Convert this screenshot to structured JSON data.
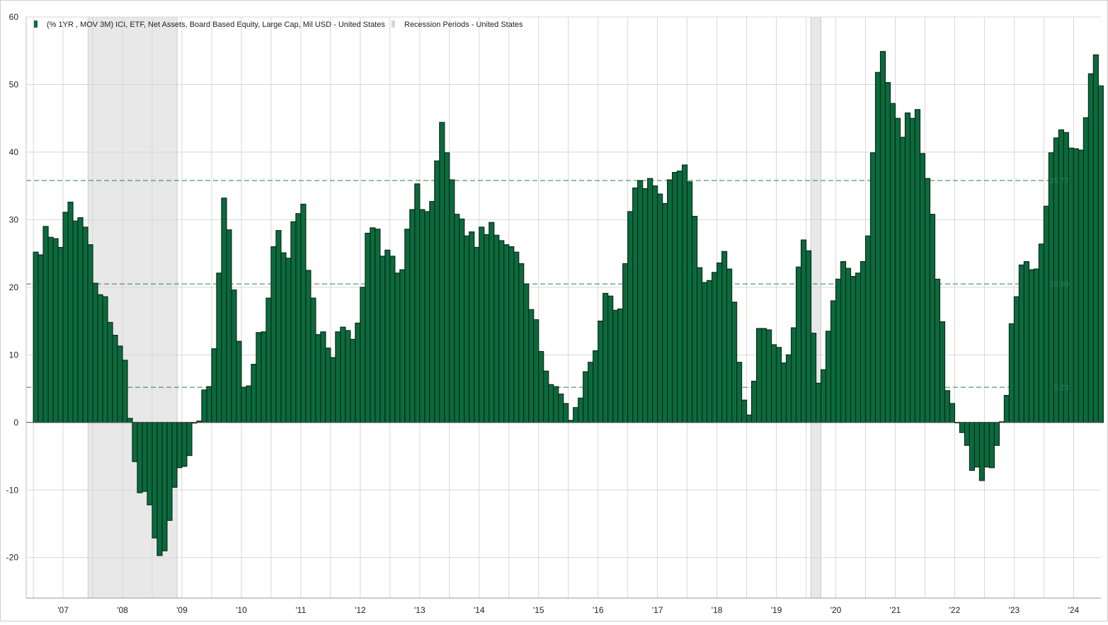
{
  "chart_data": {
    "type": "bar",
    "title": "",
    "xlabel": "",
    "ylabel": "",
    "ylim": [
      -26,
      60
    ],
    "grid": true,
    "legend_placement": "top-left",
    "colors": {
      "bar": "#0a6b3d",
      "bar_edge": "#0d2a1a",
      "recession": "#e8e8e8",
      "grid": "#d7d7d7",
      "band": "#2e7d52"
    },
    "y_ticks": [
      "60",
      "50",
      "40",
      "30",
      "20",
      "10",
      "0",
      "-10",
      "-20"
    ],
    "y_tick_values": [
      60,
      50,
      40,
      30,
      20,
      10,
      0,
      -10,
      -20
    ],
    "x_tick_labels": [
      "'07",
      "'08",
      "'09",
      "'10",
      "'11",
      "'12",
      "'13",
      "'14",
      "'15",
      "'16",
      "'17",
      "'18",
      "'19",
      "'20",
      "'21",
      "'22",
      "'23",
      "'24"
    ],
    "x_tick_years": [
      2007,
      2008,
      2009,
      2010,
      2011,
      2012,
      2013,
      2014,
      2015,
      2016,
      2017,
      2018,
      2019,
      2020,
      2021,
      2022,
      2023,
      2024
    ],
    "x_start_year": 2006.88,
    "x_end_year": 2024.96,
    "legend": [
      {
        "label": "(% 1YR , MOV 3M) ICI, ETF, Net Assets, Board Based Equity, Large Cap, Mil USD - United States",
        "kind": "series"
      },
      {
        "label": "Recession Periods - United States",
        "kind": "recession"
      }
    ],
    "recessions": [
      {
        "start": 2007.92,
        "end": 2009.42
      },
      {
        "start": 2020.08,
        "end": 2020.25
      }
    ],
    "reference_lines": [
      {
        "value": 35.8,
        "label": "35.77"
      },
      {
        "value": 20.5,
        "label": "20.50"
      },
      {
        "value": 5.2,
        "label": "5.23"
      }
    ],
    "series": [
      {
        "name": "(% 1YR , MOV 3M) ICI, ETF, Net Assets, Board Based Equity, Large Cap, Mil USD - United States",
        "start": "2007-01",
        "frequency": "monthly",
        "values": [
          25.2,
          24.8,
          29.0,
          27.4,
          27.2,
          25.9,
          31.1,
          32.6,
          29.8,
          30.3,
          28.9,
          26.3,
          20.6,
          18.9,
          18.6,
          14.8,
          12.9,
          11.3,
          9.2,
          0.6,
          -5.8,
          -10.4,
          -10.2,
          -12.2,
          -17.1,
          -19.7,
          -19.0,
          -14.5,
          -9.6,
          -6.7,
          -6.5,
          -4.9,
          -0.1,
          0.2,
          4.8,
          5.3,
          10.9,
          22.1,
          33.2,
          28.5,
          19.6,
          12.0,
          5.2,
          5.4,
          8.6,
          13.3,
          13.4,
          18.4,
          26.0,
          28.4,
          25.1,
          24.3,
          29.7,
          30.9,
          32.3,
          22.5,
          18.4,
          13.0,
          13.4,
          11.0,
          9.6,
          13.4,
          14.1,
          13.6,
          12.3,
          14.7,
          20.0,
          28.0,
          28.8,
          28.6,
          24.6,
          25.5,
          24.6,
          22.1,
          22.6,
          28.6,
          31.5,
          35.3,
          31.5,
          31.2,
          32.7,
          38.7,
          44.4,
          39.9,
          35.9,
          30.8,
          30.1,
          27.6,
          28.2,
          25.9,
          28.9,
          27.8,
          29.6,
          27.7,
          26.9,
          26.3,
          26.0,
          25.2,
          23.5,
          20.5,
          16.7,
          15.2,
          10.5,
          7.6,
          5.6,
          5.3,
          4.2,
          2.8,
          0.3,
          2.2,
          3.6,
          7.5,
          8.9,
          10.6,
          15.0,
          19.1,
          18.7,
          16.6,
          16.8,
          23.5,
          31.2,
          34.7,
          35.8,
          34.6,
          36.1,
          35.0,
          33.8,
          32.4,
          35.9,
          37.0,
          37.2,
          38.1,
          35.6,
          30.5,
          22.9,
          20.7,
          21.0,
          22.2,
          23.6,
          25.3,
          22.7,
          17.8,
          8.9,
          3.3,
          1.1,
          6.1,
          13.9,
          13.9,
          13.7,
          11.5,
          11.1,
          8.8,
          10.0,
          14.0,
          23.0,
          27.0,
          25.4,
          13.2,
          5.8,
          7.8,
          13.5,
          18.0,
          21.2,
          23.8,
          22.8,
          21.6,
          22.1,
          23.8,
          27.6,
          39.9,
          51.8,
          54.9,
          50.3,
          47.2,
          45.0,
          42.2,
          45.8,
          45.0,
          46.3,
          39.8,
          36.1,
          30.8,
          21.2,
          14.9,
          4.7,
          2.8,
          0.0,
          -1.5,
          -3.4,
          -7.1,
          -6.6,
          -8.6,
          -6.6,
          -6.7,
          -3.4,
          0.1,
          4.0,
          14.6,
          18.6,
          23.3,
          23.8,
          22.6,
          22.7,
          26.4,
          32.0,
          39.9,
          42.1,
          43.3,
          42.9,
          40.6,
          40.5,
          40.3,
          45.1,
          51.6,
          54.4,
          49.8
        ]
      }
    ]
  }
}
